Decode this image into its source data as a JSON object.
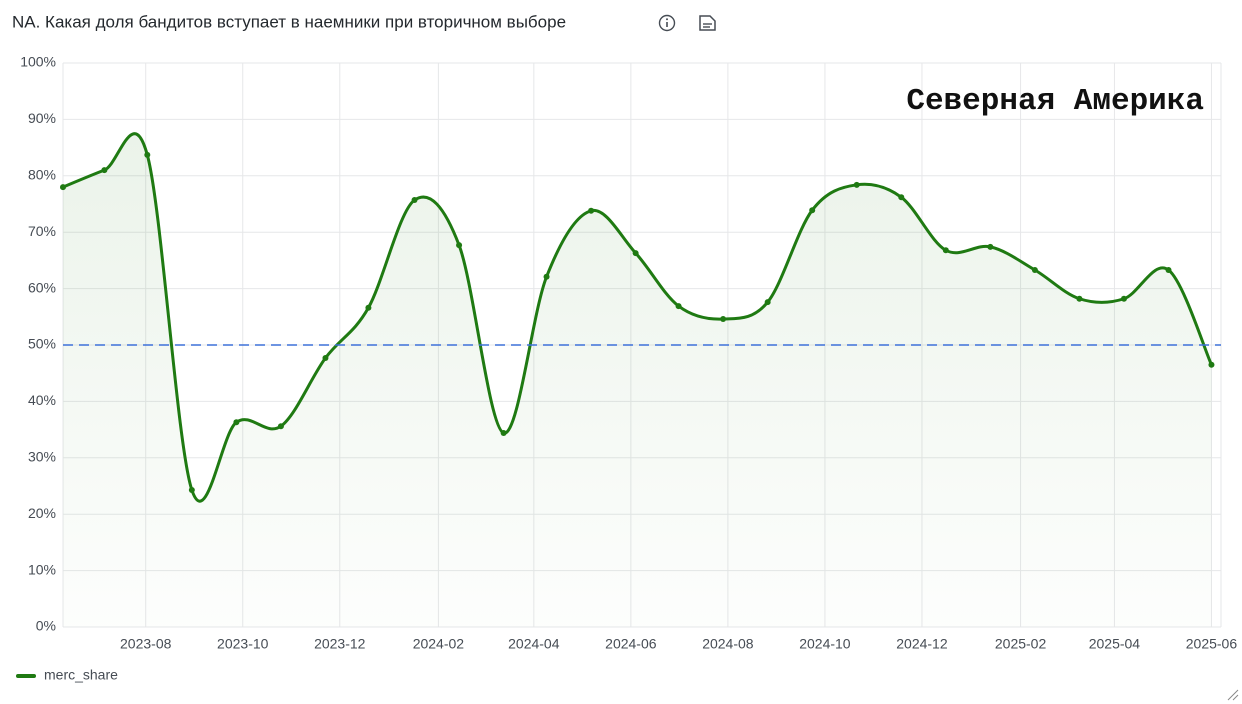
{
  "chart_data": {
    "type": "line",
    "title": "NA. Какая доля бандитов вступает в наемники при вторичном выборе",
    "annotation": "Северная Америка",
    "x": [
      "2023-06-10",
      "2023-07-06",
      "2023-08-02",
      "2023-08-30",
      "2023-09-27",
      "2023-10-25",
      "2023-11-22",
      "2023-12-19",
      "2024-01-17",
      "2024-02-14",
      "2024-03-13",
      "2024-04-09",
      "2024-05-07",
      "2024-06-04",
      "2024-07-01",
      "2024-07-29",
      "2024-08-26",
      "2024-09-23",
      "2024-10-21",
      "2024-11-18",
      "2024-12-16",
      "2025-01-13",
      "2025-02-10",
      "2025-03-10",
      "2025-04-07",
      "2025-05-05",
      "2025-06-01"
    ],
    "series": [
      {
        "name": "merc_share",
        "color": "#1f7a12",
        "values": [
          78.0,
          81.0,
          83.7,
          24.3,
          36.3,
          35.6,
          47.7,
          56.6,
          75.7,
          67.7,
          34.4,
          62.1,
          73.8,
          66.3,
          56.9,
          54.6,
          57.6,
          73.9,
          78.4,
          76.2,
          66.8,
          67.4,
          63.3,
          58.2,
          58.2,
          63.3,
          46.5
        ]
      }
    ],
    "threshold": {
      "value": 50,
      "color": "#3d71d9",
      "style": "dashed"
    },
    "xlim": [
      "2023-06-10",
      "2025-06-07"
    ],
    "xticks": [
      "2023-08",
      "2023-10",
      "2023-12",
      "2024-02",
      "2024-04",
      "2024-06",
      "2024-08",
      "2024-10",
      "2024-12",
      "2025-02",
      "2025-04",
      "2025-06"
    ],
    "ylim": [
      0,
      100
    ],
    "yticks": [
      {
        "value": 0,
        "label": "0%"
      },
      {
        "value": 10,
        "label": "10%"
      },
      {
        "value": 20,
        "label": "20%"
      },
      {
        "value": 30,
        "label": "30%"
      },
      {
        "value": 40,
        "label": "40%"
      },
      {
        "value": 50,
        "label": "50%"
      },
      {
        "value": 60,
        "label": "60%"
      },
      {
        "value": 70,
        "label": "70%"
      },
      {
        "value": 80,
        "label": "80%"
      },
      {
        "value": 90,
        "label": "90%"
      },
      {
        "value": 100,
        "label": "100%"
      }
    ],
    "grid": true,
    "legend": "bottom-left"
  }
}
